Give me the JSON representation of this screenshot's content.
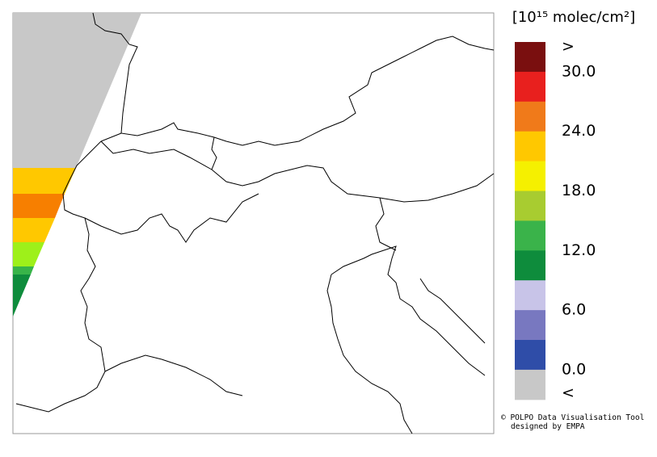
{
  "legend": {
    "title": "[10¹⁵ molec/cm²]",
    "labels": [
      ">",
      "30.0",
      "24.0",
      "18.0",
      "12.0",
      "6.0",
      "0.0",
      "<"
    ],
    "colors": [
      "#7a0f0f",
      "#e8201e",
      "#f07a1a",
      "#ffc800",
      "#f5f000",
      "#a8cc30",
      "#3ab34a",
      "#0e8c3c",
      "#c8c4e8",
      "#7878c0",
      "#2f4da8",
      "#c8c8c8"
    ]
  },
  "credits": {
    "line1": "© POLPO Data Visualisation Tool",
    "line2": "designed by EMPA"
  }
}
